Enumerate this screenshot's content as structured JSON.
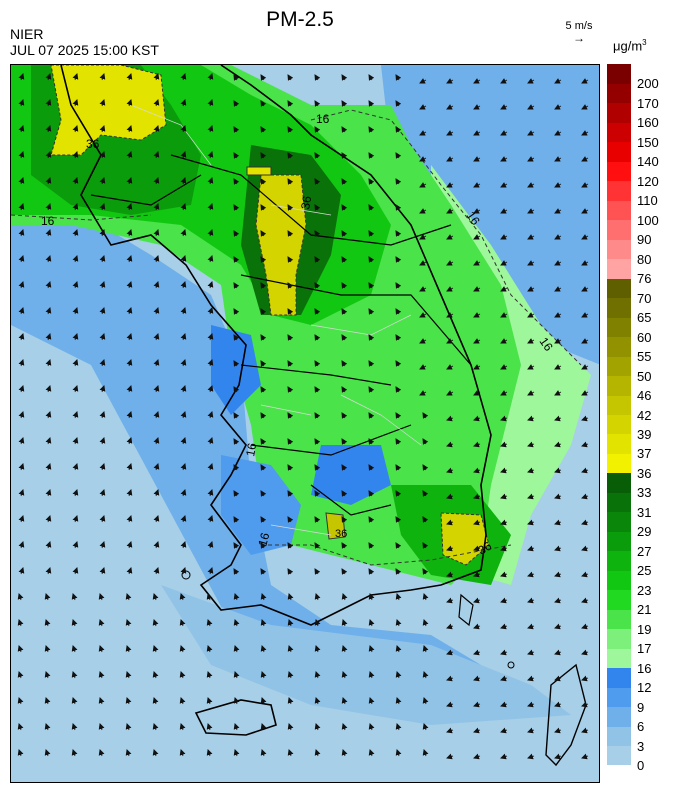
{
  "header": {
    "title": "PM-2.5",
    "organization": "NIER",
    "timestamp": "JUL 07 2025 15:00 KST",
    "wind_reference": "5 m/s",
    "unit_base": "μg/m",
    "unit_exp": "3"
  },
  "map": {
    "contour_labels": [
      "36",
      "36",
      "36",
      "16",
      "16",
      "16",
      "16",
      "16",
      "16",
      "36"
    ]
  },
  "legend": {
    "bins": [
      {
        "label": "0",
        "color": "#a7cfe7"
      },
      {
        "label": "3",
        "color": "#91c3e6"
      },
      {
        "label": "6",
        "color": "#6fb0ea"
      },
      {
        "label": "9",
        "color": "#4f9bed"
      },
      {
        "label": "12",
        "color": "#3385ee"
      },
      {
        "label": "16",
        "color": "#9ef79a"
      },
      {
        "label": "17",
        "color": "#7cf07a"
      },
      {
        "label": "19",
        "color": "#4be34a"
      },
      {
        "label": "21",
        "color": "#22d922"
      },
      {
        "label": "23",
        "color": "#12c712"
      },
      {
        "label": "25",
        "color": "#0eb30e"
      },
      {
        "label": "27",
        "color": "#0b9c0b"
      },
      {
        "label": "29",
        "color": "#0a870a"
      },
      {
        "label": "31",
        "color": "#097209"
      },
      {
        "label": "33",
        "color": "#075e07"
      },
      {
        "label": "36",
        "color": "#f2f200"
      },
      {
        "label": "37",
        "color": "#e3e300"
      },
      {
        "label": "39",
        "color": "#d4d400"
      },
      {
        "label": "42",
        "color": "#c6c600"
      },
      {
        "label": "46",
        "color": "#b5b500"
      },
      {
        "label": "50",
        "color": "#a3a300"
      },
      {
        "label": "55",
        "color": "#929200"
      },
      {
        "label": "60",
        "color": "#818100"
      },
      {
        "label": "65",
        "color": "#707000"
      },
      {
        "label": "70",
        "color": "#5f5f00"
      },
      {
        "label": "76",
        "color": "#ffa3a3"
      },
      {
        "label": "80",
        "color": "#ff8a8a"
      },
      {
        "label": "90",
        "color": "#ff6f6f"
      },
      {
        "label": "100",
        "color": "#ff5252"
      },
      {
        "label": "110",
        "color": "#ff3333"
      },
      {
        "label": "120",
        "color": "#ff0f0f"
      },
      {
        "label": "140",
        "color": "#e80000"
      },
      {
        "label": "150",
        "color": "#cc0000"
      },
      {
        "label": "160",
        "color": "#b00000"
      },
      {
        "label": "170",
        "color": "#940000"
      },
      {
        "label": "200",
        "color": "#7a0000"
      }
    ]
  }
}
